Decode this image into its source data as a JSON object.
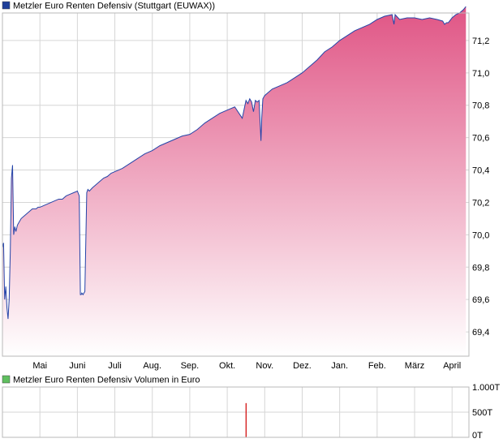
{
  "chart_data": [
    {
      "type": "area",
      "legend": "Metzler Euro Renten Defensiv (Stuttgart (EUWAX))",
      "legend_color": "#1f3f99",
      "line_color": "#2444a8",
      "fill_top_color": "#e05585",
      "fill_bottom_color": "#ffffff",
      "ylim": [
        69.25,
        71.37
      ],
      "y_ticks": [
        69.4,
        69.6,
        69.8,
        70.0,
        70.2,
        70.4,
        70.6,
        70.8,
        71.0,
        71.2
      ],
      "y_tick_labels": [
        "69,4",
        "69,6",
        "69,8",
        "70,0",
        "70,2",
        "70,4",
        "70,6",
        "70,8",
        "71,0",
        "71,2"
      ],
      "x_months": [
        "Mai",
        "Juni",
        "Juli",
        "Aug.",
        "Sep.",
        "Okt.",
        "Nov.",
        "Dez.",
        "Jan.",
        "Feb.",
        "März",
        "April"
      ],
      "x_month_pos": [
        1.0,
        2.0,
        3.0,
        4.0,
        5.0,
        6.0,
        7.0,
        8.0,
        9.0,
        10.0,
        11.0,
        12.0
      ],
      "xlim": [
        0.0,
        12.45
      ],
      "series": [
        {
          "x": [
            0.0,
            0.03,
            0.06,
            0.09,
            0.12,
            0.15,
            0.18,
            0.21,
            0.24,
            0.27,
            0.3,
            0.33,
            0.36,
            0.4,
            0.45,
            0.5,
            0.55,
            0.6,
            0.65,
            0.7,
            0.75,
            0.8,
            0.85,
            0.9,
            0.95,
            1.0,
            1.1,
            1.2,
            1.3,
            1.4,
            1.5,
            1.6,
            1.7,
            1.8,
            1.9,
            2.0,
            2.05,
            2.08,
            2.1,
            2.12,
            2.15,
            2.2,
            2.25,
            2.28,
            2.32,
            2.4,
            2.5,
            2.6,
            2.7,
            2.8,
            2.9,
            3.0,
            3.2,
            3.4,
            3.6,
            3.8,
            4.0,
            4.2,
            4.4,
            4.6,
            4.8,
            5.0,
            5.2,
            5.4,
            5.6,
            5.8,
            6.0,
            6.2,
            6.4,
            6.5,
            6.55,
            6.6,
            6.65,
            6.7,
            6.75,
            6.8,
            6.85,
            6.9,
            6.92,
            6.95,
            7.0,
            7.2,
            7.4,
            7.6,
            7.8,
            8.0,
            8.2,
            8.4,
            8.6,
            8.8,
            9.0,
            9.2,
            9.4,
            9.6,
            9.8,
            10.0,
            10.2,
            10.4,
            10.45,
            10.48,
            10.52,
            10.6,
            10.8,
            11.0,
            11.2,
            11.4,
            11.6,
            11.75,
            11.8,
            11.85,
            11.9,
            12.0,
            12.1,
            12.2,
            12.3,
            12.37
          ],
          "y": [
            69.92,
            69.95,
            69.6,
            69.68,
            69.55,
            69.48,
            69.6,
            69.9,
            70.35,
            70.43,
            70.0,
            70.05,
            70.02,
            70.06,
            70.08,
            70.1,
            70.11,
            70.12,
            70.13,
            70.14,
            70.15,
            70.16,
            70.16,
            70.16,
            70.17,
            70.17,
            70.18,
            70.19,
            70.2,
            70.21,
            70.22,
            70.22,
            70.24,
            70.25,
            70.26,
            70.27,
            70.24,
            69.63,
            69.63,
            69.64,
            69.63,
            69.65,
            70.26,
            70.28,
            70.27,
            70.29,
            70.31,
            70.33,
            70.35,
            70.36,
            70.38,
            70.39,
            70.41,
            70.44,
            70.47,
            70.5,
            70.52,
            70.55,
            70.57,
            70.59,
            70.61,
            70.62,
            70.65,
            70.69,
            70.72,
            70.75,
            70.77,
            70.79,
            70.72,
            70.83,
            70.81,
            70.84,
            70.82,
            70.76,
            70.83,
            70.82,
            70.83,
            70.58,
            70.72,
            70.84,
            70.86,
            70.9,
            70.92,
            70.94,
            70.97,
            71.0,
            71.04,
            71.08,
            71.13,
            71.16,
            71.2,
            71.23,
            71.26,
            71.28,
            71.3,
            71.33,
            71.35,
            71.36,
            71.3,
            71.36,
            71.35,
            71.33,
            71.34,
            71.34,
            71.33,
            71.34,
            71.33,
            71.32,
            71.3,
            71.31,
            71.31,
            71.34,
            71.36,
            71.37,
            71.39,
            71.41
          ]
        }
      ]
    },
    {
      "type": "bar",
      "legend": "Metzler Euro Renten Defensiv Volumen in Euro",
      "legend_color": "#5fbf5f",
      "bar_color": "#d00000",
      "ylim": [
        0,
        1000
      ],
      "y_ticks": [
        0,
        500,
        1000
      ],
      "y_tick_labels": [
        "0T",
        "500T",
        "1.000T"
      ],
      "x_months": [
        "Mai",
        "Juni",
        "Juli",
        "Aug.",
        "Sep.",
        "Okt.",
        "Nov.",
        "Dez.",
        "Jan.",
        "Feb.",
        "März",
        "April"
      ],
      "x_month_pos": [
        1.0,
        2.0,
        3.0,
        4.0,
        5.0,
        6.0,
        7.0,
        8.0,
        9.0,
        10.0,
        11.0,
        12.0
      ],
      "xlim": [
        0.0,
        12.45
      ],
      "bars": [
        {
          "x": 6.5,
          "value": 680
        }
      ]
    }
  ]
}
